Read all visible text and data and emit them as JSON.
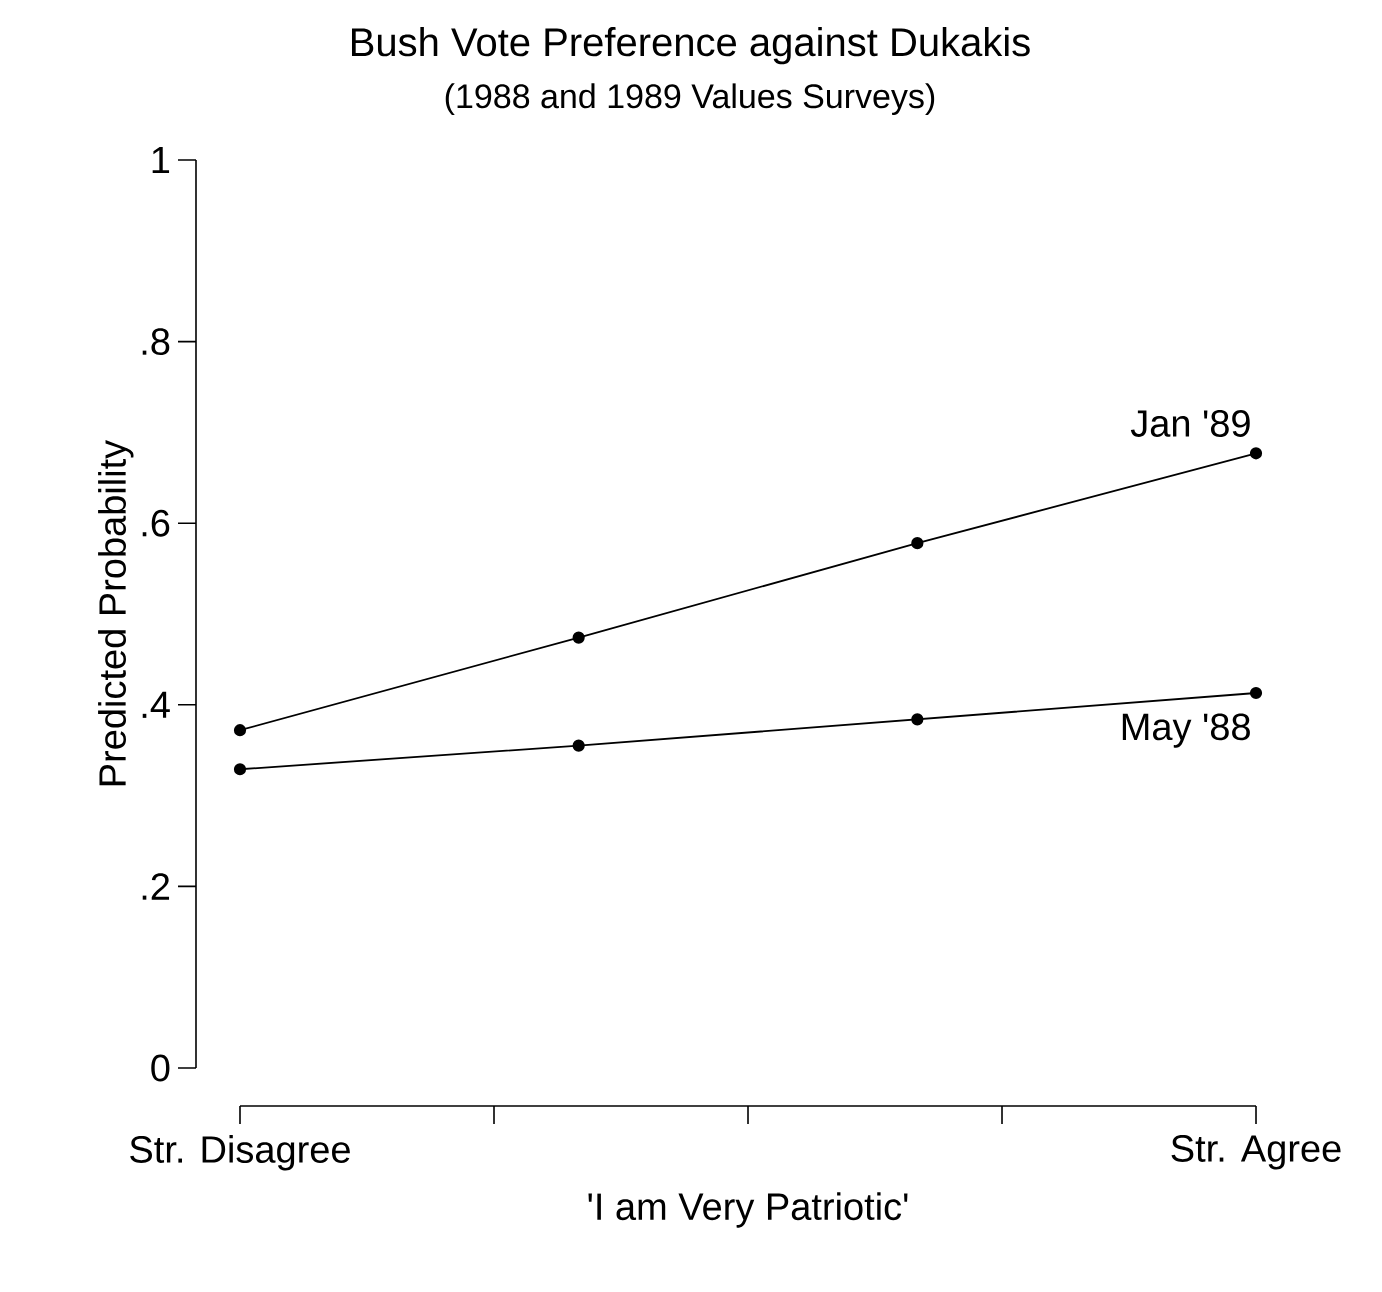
{
  "chart_data": {
    "type": "line",
    "title": "Bush Vote Preference against Dukakis",
    "subtitle": "(1988 and 1989 Values Surveys)",
    "xlabel": "'I am Very Patriotic'",
    "ylabel": "Predicted Probability",
    "categories": [
      "Str. Disagree",
      null,
      null,
      "Str. Agree"
    ],
    "series": [
      {
        "name": "Jan '89",
        "color": "#000000",
        "values": [
          0.372,
          0.474,
          0.578,
          0.677
        ]
      },
      {
        "name": "May '88",
        "color": "#000000",
        "values": [
          0.329,
          0.355,
          0.384,
          0.413
        ]
      }
    ],
    "ylim": [
      0,
      1
    ],
    "yticks": [
      {
        "value": 0,
        "label": "0"
      },
      {
        "value": 0.2,
        "label": ".2"
      },
      {
        "value": 0.4,
        "label": ".4"
      },
      {
        "value": 0.6,
        "label": ".6"
      },
      {
        "value": 0.8,
        "label": ".8"
      },
      {
        "value": 1,
        "label": "1"
      }
    ],
    "marker": "circle",
    "line_style": "solid",
    "legend": false,
    "grid": false
  }
}
